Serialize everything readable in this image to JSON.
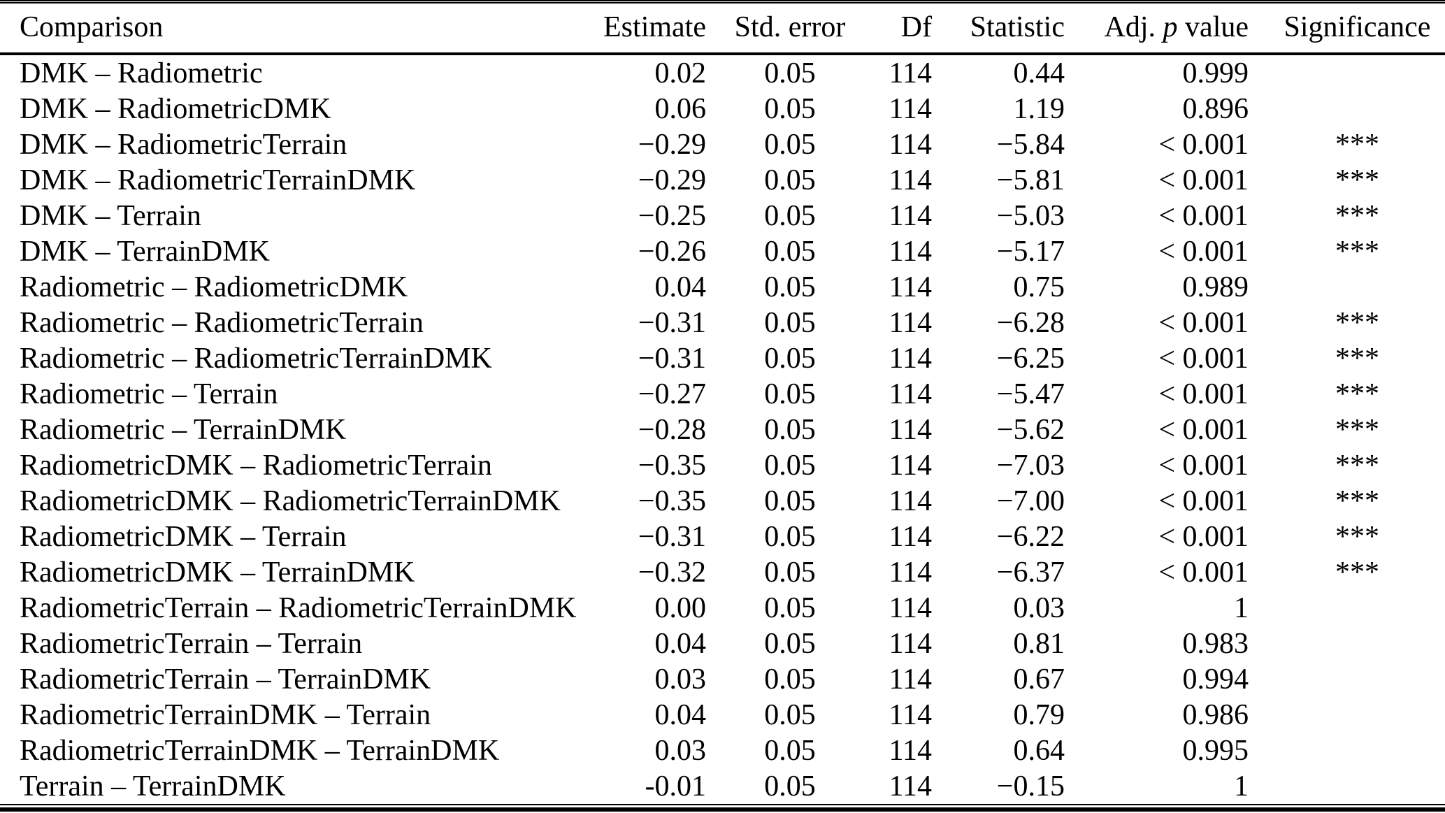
{
  "page": {
    "background_color": "#ffffff",
    "text_color": "#000000"
  },
  "table": {
    "columns": [
      {
        "key": "comparison",
        "label": "Comparison",
        "align": "left"
      },
      {
        "key": "estimate",
        "label": "Estimate",
        "align": "right"
      },
      {
        "key": "std_error",
        "label": "Std. error",
        "align": "center"
      },
      {
        "key": "df",
        "label": "Df",
        "align": "right"
      },
      {
        "key": "statistic",
        "label": "Statistic",
        "align": "right"
      },
      {
        "key": "adj_p_value",
        "label": "Adj. p value",
        "align": "right"
      },
      {
        "key": "significance",
        "label": "Significance",
        "align": "center"
      }
    ],
    "adj_p_header": {
      "prefix": "Adj.",
      "italic": "p",
      "suffix": "value"
    },
    "rows": [
      [
        "DMK – Radiometric",
        "0.02",
        "0.05",
        "114",
        "0.44",
        "0.999",
        ""
      ],
      [
        "DMK – RadiometricDMK",
        "0.06",
        "0.05",
        "114",
        "1.19",
        "0.896",
        ""
      ],
      [
        "DMK – RadiometricTerrain",
        "−0.29",
        "0.05",
        "114",
        "−5.84",
        "< 0.001",
        "***"
      ],
      [
        "DMK – RadiometricTerrainDMK",
        "−0.29",
        "0.05",
        "114",
        "−5.81",
        "< 0.001",
        "***"
      ],
      [
        "DMK – Terrain",
        "−0.25",
        "0.05",
        "114",
        "−5.03",
        "< 0.001",
        "***"
      ],
      [
        "DMK – TerrainDMK",
        "−0.26",
        "0.05",
        "114",
        "−5.17",
        "< 0.001",
        "***"
      ],
      [
        "Radiometric – RadiometricDMK",
        "0.04",
        "0.05",
        "114",
        "0.75",
        "0.989",
        ""
      ],
      [
        "Radiometric – RadiometricTerrain",
        "−0.31",
        "0.05",
        "114",
        "−6.28",
        "< 0.001",
        "***"
      ],
      [
        "Radiometric – RadiometricTerrainDMK",
        "−0.31",
        "0.05",
        "114",
        "−6.25",
        "< 0.001",
        "***"
      ],
      [
        "Radiometric – Terrain",
        "−0.27",
        "0.05",
        "114",
        "−5.47",
        "< 0.001",
        "***"
      ],
      [
        "Radiometric – TerrainDMK",
        "−0.28",
        "0.05",
        "114",
        "−5.62",
        "< 0.001",
        "***"
      ],
      [
        "RadiometricDMK – RadiometricTerrain",
        "−0.35",
        "0.05",
        "114",
        "−7.03",
        "< 0.001",
        "***"
      ],
      [
        "RadiometricDMK – RadiometricTerrainDMK",
        "−0.35",
        "0.05",
        "114",
        "−7.00",
        "< 0.001",
        "***"
      ],
      [
        "RadiometricDMK – Terrain",
        "−0.31",
        "0.05",
        "114",
        "−6.22",
        "< 0.001",
        "***"
      ],
      [
        "RadiometricDMK – TerrainDMK",
        "−0.32",
        "0.05",
        "114",
        "−6.37",
        "< 0.001",
        "***"
      ],
      [
        "RadiometricTerrain – RadiometricTerrainDMK",
        "0.00",
        "0.05",
        "114",
        "0.03",
        "1",
        ""
      ],
      [
        "RadiometricTerrain – Terrain",
        "0.04",
        "0.05",
        "114",
        "0.81",
        "0.983",
        ""
      ],
      [
        "RadiometricTerrain – TerrainDMK",
        "0.03",
        "0.05",
        "114",
        "0.67",
        "0.994",
        ""
      ],
      [
        "RadiometricTerrainDMK – Terrain",
        "0.04",
        "0.05",
        "114",
        "0.79",
        "0.986",
        ""
      ],
      [
        "RadiometricTerrainDMK – TerrainDMK",
        "0.03",
        "0.05",
        "114",
        "0.64",
        "0.995",
        ""
      ],
      [
        "Terrain – TerrainDMK",
        "-0.01",
        "0.05",
        "114",
        "−0.15",
        "1",
        ""
      ]
    ]
  }
}
